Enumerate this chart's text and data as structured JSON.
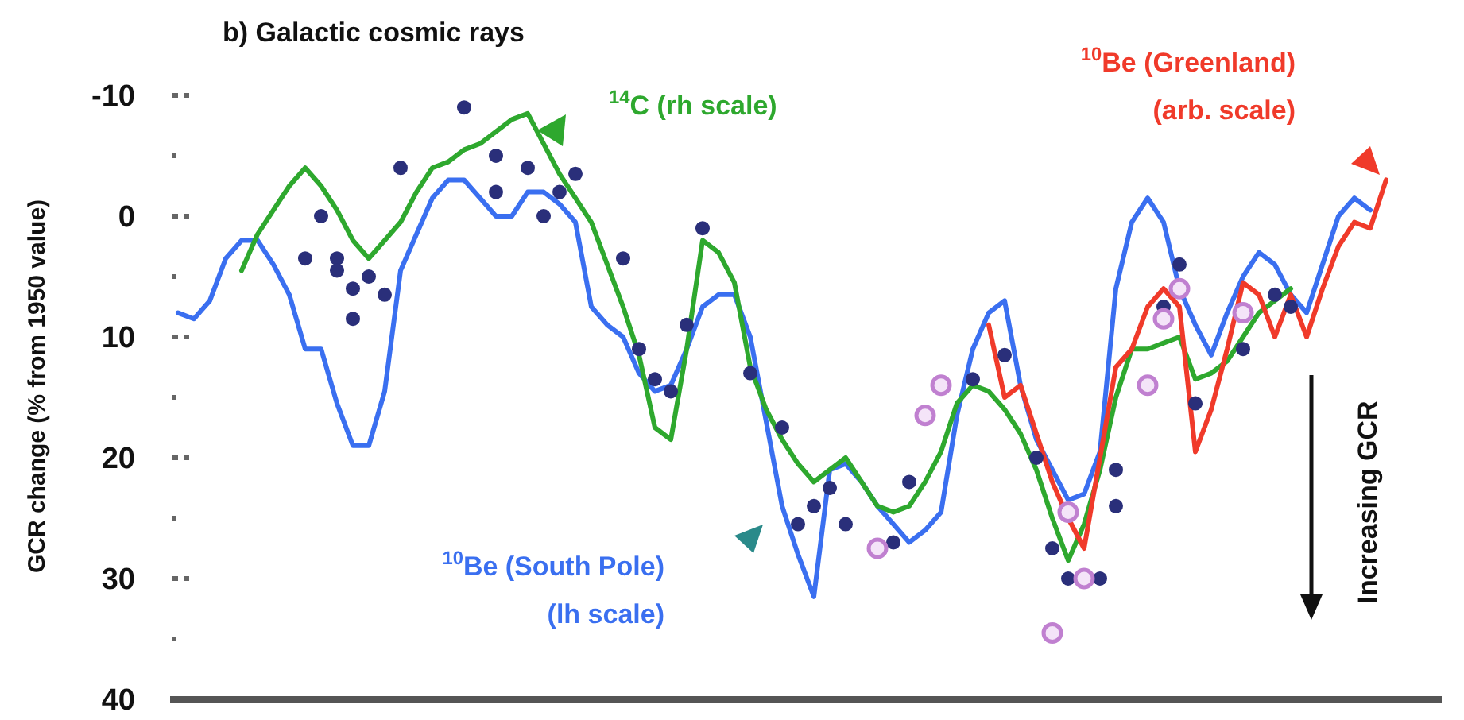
{
  "chart_data": {
    "type": "line",
    "title": "b) Galactic cosmic rays",
    "ylabel": "GCR change (% from 1950 value)",
    "annotations": [
      "Increasing GCR"
    ],
    "categories": [
      null,
      null,
      null,
      null,
      null,
      null,
      null,
      null,
      null,
      null,
      null,
      null,
      null,
      null,
      null,
      null,
      null,
      null,
      null,
      null,
      null,
      null,
      null,
      null,
      null,
      null,
      null,
      null,
      null,
      null,
      null,
      null,
      null,
      null,
      null,
      null,
      null,
      null,
      null,
      null,
      null,
      null,
      null,
      null,
      null,
      null,
      null,
      null,
      null,
      null,
      null,
      null,
      null,
      null,
      null,
      null,
      null,
      null,
      null,
      null,
      null,
      null,
      null,
      null,
      null,
      null,
      null,
      null,
      null,
      null,
      null,
      null,
      null,
      null,
      null,
      null,
      null,
      null,
      null,
      null
    ],
    "ylim": [
      40,
      -10
    ],
    "yticks": [
      -10,
      {
        "value": -5,
        "label": null
      },
      0,
      {
        "value": 5,
        "label": null
      },
      10,
      {
        "value": 15,
        "label": null
      },
      20,
      {
        "value": 25,
        "label": null
      },
      30,
      {
        "value": 35,
        "label": null
      },
      40
    ],
    "series": [
      {
        "name": "$^{10}$Be (South Pole)\n(lh scale)",
        "color": "#3a6ff0",
        "values": [
          8,
          8.5,
          7,
          3.5,
          2,
          2,
          4,
          6.5,
          11,
          11,
          15.5,
          19,
          19,
          14.5,
          4.5,
          1.5,
          -1.5,
          -3,
          -3,
          -1.5,
          0,
          0,
          -2,
          -2,
          -1,
          0.5,
          7.5,
          9,
          10,
          13,
          14.5,
          14,
          11,
          7.5,
          6.5,
          6.5,
          10,
          17,
          24,
          28,
          31.5,
          21,
          20.5,
          22,
          24,
          25.5,
          27,
          26,
          24.5,
          16.5,
          11,
          8,
          7,
          14,
          18.5,
          21,
          23.5,
          23,
          19.5,
          6,
          0.5,
          -1.5,
          0.5,
          6,
          9,
          11.5,
          8,
          5,
          3,
          4,
          6.5,
          8,
          4,
          0,
          -1.5,
          -0.5,
          null,
          null,
          null,
          null
        ]
      },
      {
        "name": "$^{14}$C (rh scale)",
        "color": "#2ea82e",
        "values": [
          null,
          null,
          null,
          null,
          4.5,
          1.5,
          -0.5,
          -2.5,
          -4,
          -2.5,
          -0.5,
          2,
          3.5,
          2,
          0.5,
          -2,
          -4,
          -4.5,
          -5.5,
          -6,
          -7,
          -8,
          -8.5,
          -6,
          -3.5,
          -1.5,
          0.5,
          4,
          7.5,
          11.5,
          17.5,
          18.5,
          11,
          2,
          3,
          5.5,
          12.5,
          16,
          18.5,
          20.5,
          22,
          21,
          20,
          22,
          24,
          24.5,
          24,
          22,
          19.5,
          15.5,
          14,
          14.5,
          16,
          18,
          21,
          25,
          28.5,
          25.5,
          21,
          15,
          11,
          11,
          10.5,
          10,
          13.5,
          13,
          12,
          10,
          8,
          7,
          6,
          null,
          null,
          null,
          null,
          null,
          null,
          null,
          null,
          null
        ]
      },
      {
        "name": "$^{10}$Be (Greenland)\n(arb. scale)",
        "color": "#f03a2a",
        "values": [
          null,
          null,
          null,
          null,
          null,
          null,
          null,
          null,
          null,
          null,
          null,
          null,
          null,
          null,
          null,
          null,
          null,
          null,
          null,
          null,
          null,
          null,
          null,
          null,
          null,
          null,
          null,
          null,
          null,
          null,
          null,
          null,
          null,
          null,
          null,
          null,
          null,
          null,
          null,
          null,
          null,
          null,
          null,
          null,
          null,
          null,
          null,
          null,
          null,
          null,
          null,
          9,
          15,
          14,
          18,
          22,
          25,
          27.5,
          20,
          12.5,
          11,
          7.5,
          6,
          7.5,
          19.5,
          16,
          11,
          5.5,
          6.5,
          10,
          6.5,
          10,
          6,
          2.5,
          0.5,
          1,
          -3,
          null,
          null,
          null
        ]
      },
      {
        "type": "scatter",
        "marker": "circle",
        "color": "#2a2f7a",
        "values": [
          null,
          null,
          null,
          null,
          null,
          null,
          null,
          null,
          3.5,
          0,
          3.5,
          6,
          5,
          6.5,
          -4,
          null,
          null,
          null,
          -9,
          null,
          -5,
          null,
          -4,
          0,
          -2,
          -3.5,
          null,
          null,
          3.5,
          11,
          13.5,
          14.5,
          9,
          1,
          null,
          null,
          13,
          null,
          17.5,
          25.5,
          24,
          22.5,
          25.5,
          null,
          null,
          27,
          22,
          null,
          null,
          null,
          13.5,
          null,
          11.5,
          null,
          20,
          27.5,
          30,
          null,
          30,
          24,
          null,
          null,
          7.5,
          4,
          15.5,
          null,
          null,
          11,
          null,
          6.5,
          7.5,
          null,
          null,
          null,
          null,
          null,
          null,
          null,
          null,
          null
        ]
      },
      {
        "type": "scatter",
        "marker": "circle",
        "color": "#2a2f7a",
        "values": [
          null,
          null,
          null,
          null,
          null,
          null,
          null,
          null,
          null,
          null,
          4.5,
          8.5,
          null,
          null,
          null,
          null,
          null,
          null,
          null,
          null,
          -2,
          null,
          null,
          null,
          null,
          null,
          null,
          null,
          null,
          null,
          null,
          null,
          null,
          null,
          null,
          null,
          null,
          null,
          null,
          null,
          null,
          null,
          null,
          null,
          null,
          null,
          null,
          null,
          null,
          null,
          null,
          null,
          null,
          null,
          null,
          null,
          null,
          null,
          null,
          21,
          null,
          null,
          null,
          null,
          null,
          null,
          null,
          null,
          null,
          null,
          null,
          null,
          null,
          null,
          null,
          null,
          null,
          null,
          null,
          null
        ]
      },
      {
        "type": "scatter",
        "marker": "circle",
        "color": "#c080d0",
        "values": [
          null,
          null,
          null,
          null,
          null,
          null,
          null,
          null,
          null,
          null,
          null,
          null,
          null,
          null,
          null,
          null,
          null,
          null,
          null,
          null,
          null,
          null,
          null,
          null,
          null,
          null,
          null,
          null,
          null,
          null,
          null,
          null,
          null,
          null,
          null,
          null,
          null,
          null,
          null,
          null,
          null,
          null,
          null,
          null,
          27.5,
          null,
          null,
          16.5,
          14,
          null,
          null,
          null,
          null,
          null,
          null,
          34.5,
          24.5,
          30,
          null,
          null,
          null,
          14,
          8.5,
          6,
          null,
          null,
          null,
          8,
          null,
          null,
          null,
          null,
          null,
          null,
          null,
          null,
          null,
          null,
          null,
          null
        ]
      }
    ]
  }
}
